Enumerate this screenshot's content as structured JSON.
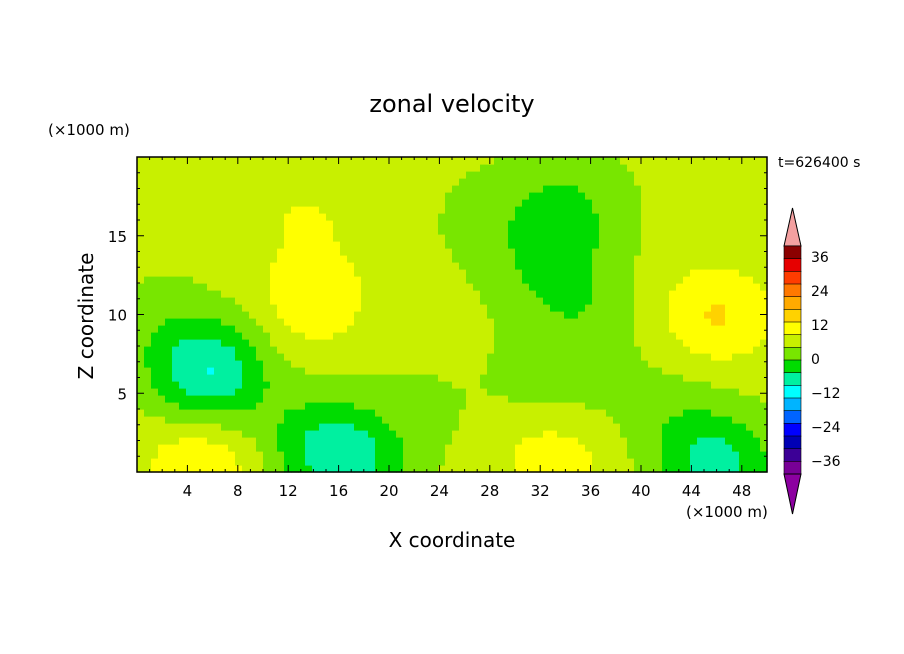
{
  "chart_data": {
    "type": "heatmap",
    "title": "zonal velocity",
    "xlabel": "X coordinate",
    "ylabel": "Z coordinate",
    "x_unit": "(×1000 m)",
    "y_unit": "(×1000 m)",
    "time_label": "t=626400 s",
    "xlim": [
      0,
      50
    ],
    "ylim": [
      0,
      20
    ],
    "x_ticks": [
      4,
      8,
      12,
      16,
      20,
      24,
      28,
      32,
      36,
      40,
      44,
      48
    ],
    "y_ticks": [
      5,
      10,
      15
    ],
    "colorbar": {
      "labels": [
        36,
        24,
        12,
        0,
        -12,
        -24,
        -36
      ],
      "levels": [
        42,
        36,
        30,
        24,
        18,
        12,
        6,
        0,
        -6,
        -12,
        -18,
        -24,
        -30,
        -36,
        -42
      ],
      "colors": [
        "#8b0000",
        "#e60000",
        "#ff3c00",
        "#ff7800",
        "#ffaa00",
        "#ffd200",
        "#ffff00",
        "#c8f000",
        "#78e600",
        "#00dc00",
        "#00f0a0",
        "#00ffff",
        "#00b4ff",
        "#0064ff",
        "#0000ff",
        "#0000b4",
        "#3c0096",
        "#780096"
      ],
      "over_color": "#f4a0a0",
      "under_color": "#8c00a0"
    },
    "blobs": [
      {
        "x": 14,
        "z": 11,
        "u": 9
      },
      {
        "x": 46,
        "z": 10,
        "u": 11
      },
      {
        "x": 5,
        "z": 0.5,
        "u": 10
      },
      {
        "x": 33,
        "z": 0.8,
        "u": 8
      },
      {
        "x": 14,
        "z": 16.5,
        "u": 4
      },
      {
        "x": 6,
        "z": 6.5,
        "u": -11
      },
      {
        "x": 5.5,
        "z": 6,
        "u": -8
      },
      {
        "x": 17,
        "z": 0.7,
        "u": -14
      },
      {
        "x": 14,
        "z": 2,
        "u": -8
      },
      {
        "x": 46,
        "z": 0.5,
        "u": -16
      },
      {
        "x": 34,
        "z": 17,
        "u": -8
      },
      {
        "x": 33,
        "z": 13,
        "u": -8
      },
      {
        "x": 33,
        "z": 6,
        "u": -5
      },
      {
        "x": 2,
        "z": 9,
        "u": -4
      },
      {
        "x": 28,
        "z": 16,
        "u": -3
      },
      {
        "x": 36,
        "z": 10,
        "u": -4
      },
      {
        "x": 23,
        "z": 4,
        "u": -2
      },
      {
        "x": 8,
        "z": 17,
        "u": 2
      },
      {
        "x": 42,
        "z": 4,
        "u": -4
      }
    ]
  }
}
